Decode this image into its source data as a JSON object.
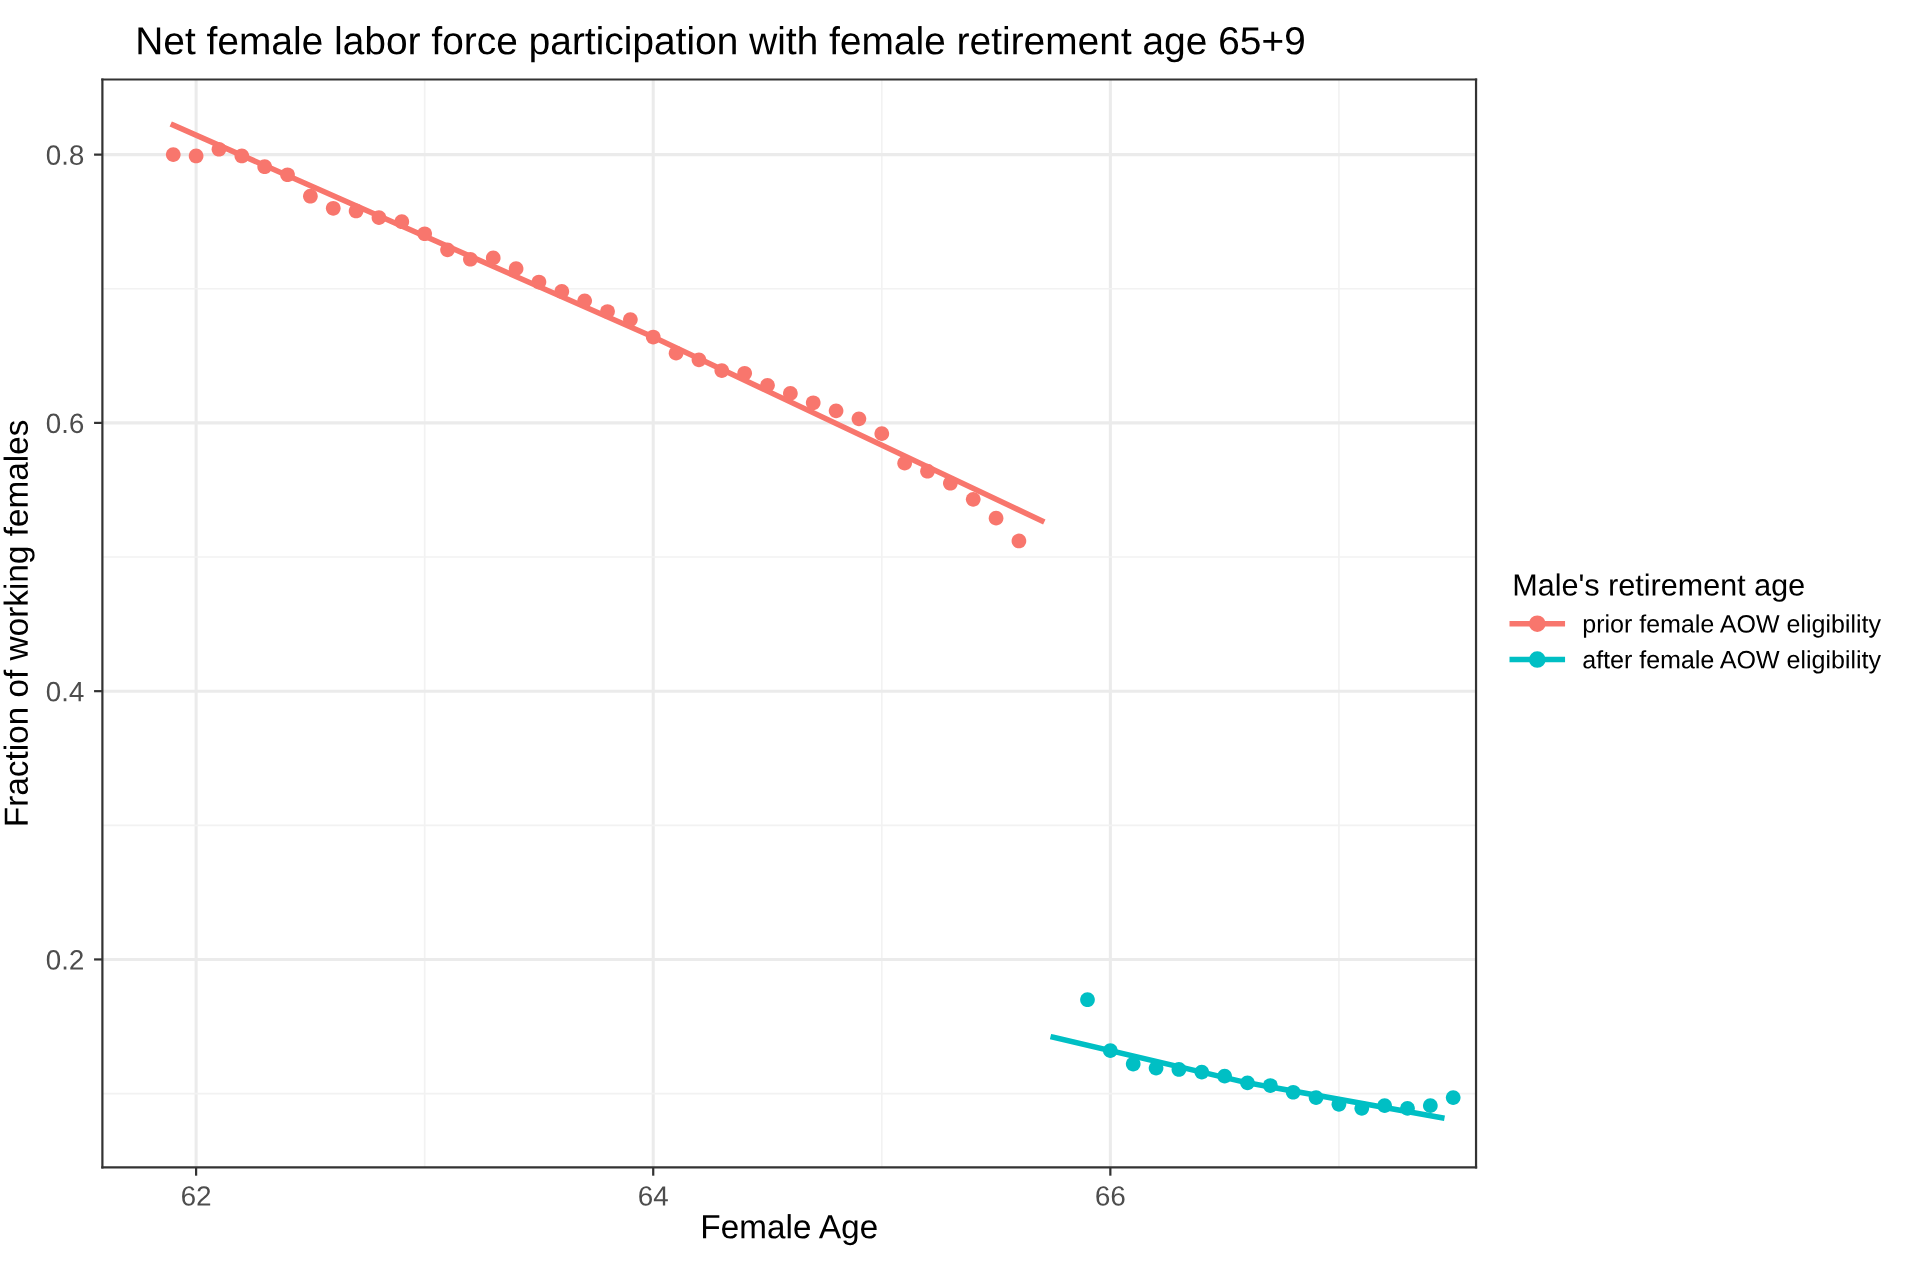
{
  "chart_data": {
    "type": "scatter",
    "title": "Net female labor force participation with female retirement age 65+9",
    "xlabel": "Female Age",
    "ylabel": "Fraction of working females",
    "legend_title": "Male's retirement age",
    "legend": "right",
    "grid": true,
    "xlim": [
      61.59,
      67.6
    ],
    "ylim": [
      0.045,
      0.856
    ],
    "xticks": [
      {
        "value": 62,
        "label": "62"
      },
      {
        "value": 63,
        "label": null
      },
      {
        "value": 64,
        "label": "64"
      },
      {
        "value": 65,
        "label": null
      },
      {
        "value": 66,
        "label": "66"
      },
      {
        "value": 67,
        "label": null
      }
    ],
    "yticks": [
      {
        "value": 0.1,
        "label": null
      },
      {
        "value": 0.2,
        "label": "0.2"
      },
      {
        "value": 0.3,
        "label": null
      },
      {
        "value": 0.4,
        "label": "0.4"
      },
      {
        "value": 0.5,
        "label": null
      },
      {
        "value": 0.6,
        "label": "0.6"
      },
      {
        "value": 0.7,
        "label": null
      },
      {
        "value": 0.8,
        "label": "0.8"
      }
    ],
    "series": [
      {
        "name": "prior female AOW eligibility",
        "color": "#f8766d",
        "marker": "circle",
        "x": [
          61.9,
          62.0,
          62.1,
          62.2,
          62.3,
          62.4,
          62.5,
          62.6,
          62.7,
          62.8,
          62.9,
          63.0,
          63.1,
          63.2,
          63.3,
          63.4,
          63.5,
          63.6,
          63.7,
          63.8,
          63.9,
          64.0,
          64.1,
          64.2,
          64.3,
          64.4,
          64.5,
          64.6,
          64.7,
          64.8,
          64.9,
          65.0,
          65.1,
          65.2,
          65.3,
          65.4,
          65.5,
          65.6
        ],
        "values": [
          0.8,
          0.799,
          0.804,
          0.799,
          0.791,
          0.785,
          0.769,
          0.76,
          0.758,
          0.753,
          0.75,
          0.741,
          0.729,
          0.722,
          0.723,
          0.715,
          0.705,
          0.698,
          0.691,
          0.683,
          0.677,
          0.664,
          0.652,
          0.647,
          0.639,
          0.637,
          0.628,
          0.622,
          0.615,
          0.609,
          0.603,
          0.592,
          0.57,
          0.564,
          0.555,
          0.543,
          0.529,
          0.512
        ]
      },
      {
        "name": "after female AOW eligibility",
        "color": "#00bfc4",
        "marker": "circle",
        "x": [
          65.9,
          66.0,
          66.1,
          66.2,
          66.3,
          66.4,
          66.5,
          66.6,
          66.7,
          66.8,
          66.9,
          67.0,
          67.1,
          67.2,
          67.3,
          67.4,
          67.5
        ],
        "values": [
          0.17,
          0.132,
          0.122,
          0.119,
          0.118,
          0.116,
          0.113,
          0.108,
          0.106,
          0.101,
          0.097,
          0.092,
          0.089,
          0.091,
          0.089,
          0.091,
          0.097
        ]
      },
      {
        "type": "line",
        "color": "#f8766d",
        "x": [
          61.9,
          64.0,
          65.7
        ],
        "values": [
          0.822,
          0.664,
          0.527
        ]
      },
      {
        "type": "line",
        "color": "#00bfc4",
        "x": [
          65.75,
          66.6,
          67.45
        ],
        "values": [
          0.142,
          0.108,
          0.082
        ]
      }
    ]
  }
}
